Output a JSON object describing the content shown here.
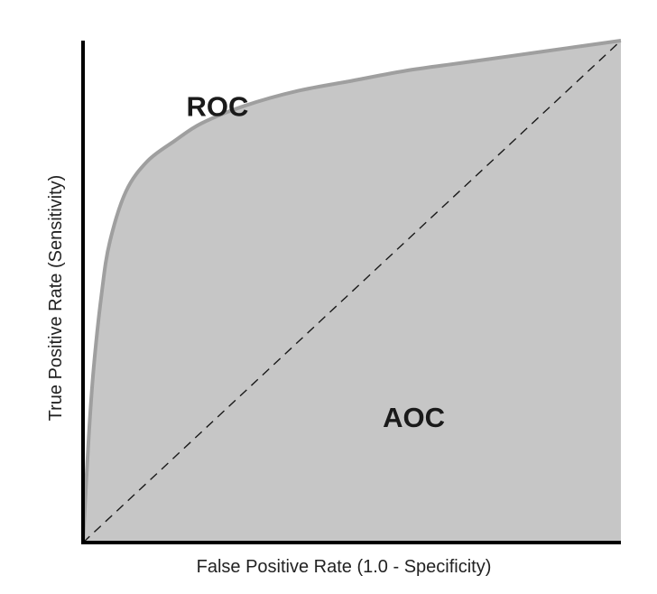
{
  "chart_data": {
    "type": "area",
    "title": "",
    "xlabel": "False Positive Rate (1.0 - Specificity)",
    "ylabel": "True Positive Rate (Sensitivity)",
    "xlim": [
      0,
      1
    ],
    "ylim": [
      0,
      1
    ],
    "grid": false,
    "tick_labels_shown": false,
    "series": [
      {
        "name": "ROC",
        "x": [
          0,
          0.01,
          0.02,
          0.035,
          0.05,
          0.08,
          0.12,
          0.17,
          0.22,
          0.3,
          0.4,
          0.5,
          0.6,
          0.7,
          0.8,
          0.9,
          1.0
        ],
        "y": [
          0,
          0.2,
          0.35,
          0.5,
          0.6,
          0.7,
          0.76,
          0.8,
          0.835,
          0.87,
          0.9,
          0.92,
          0.94,
          0.955,
          0.97,
          0.985,
          1.0
        ],
        "fill": true
      },
      {
        "name": "",
        "x": [
          0,
          1
        ],
        "y": [
          0,
          1
        ],
        "style": "dashed"
      }
    ],
    "annotations": [
      {
        "text": "ROC",
        "x": 0.25,
        "y": 0.87
      },
      {
        "text": "AOC",
        "x": 0.615,
        "y": 0.25
      }
    ],
    "colors": {
      "fill": "#c6c6c6",
      "curve": "#9f9f9f",
      "axis": "#000000",
      "diagonal": "#1a1a1a"
    }
  }
}
